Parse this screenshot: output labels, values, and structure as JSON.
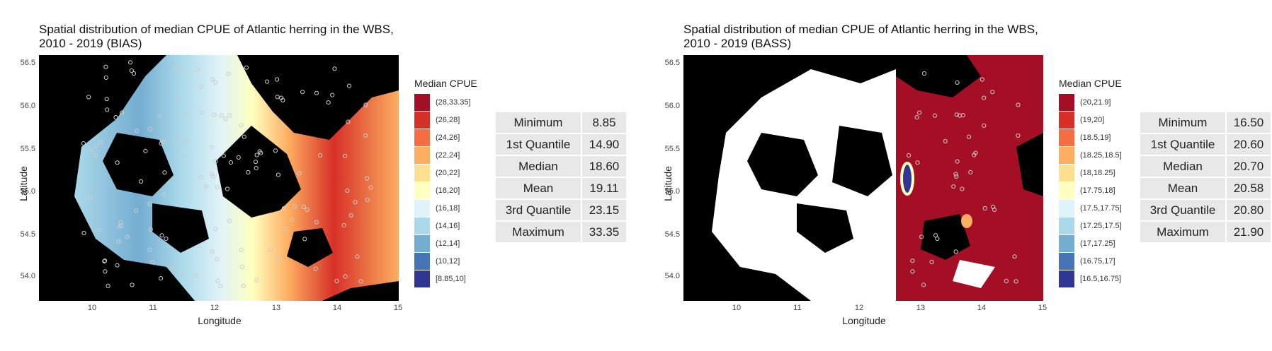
{
  "chart_data": [
    {
      "type": "heatmap",
      "title": "Spatial distribution of median CPUE of Atlantic herring in the WBS,",
      "subtitle": "2010 - 2019 (BIAS)",
      "xlabel": "Longitude",
      "ylabel": "Latitude",
      "xlim": [
        9.15,
        15.0
      ],
      "ylim": [
        53.7,
        56.6
      ],
      "x_ticks": [
        "10",
        "11",
        "12",
        "13",
        "14",
        "15"
      ],
      "y_ticks": [
        "56.5",
        "56.0",
        "55.5",
        "55.0",
        "54.5",
        "54.0"
      ],
      "legend_title": "Median CPUE",
      "legend": [
        {
          "label": "(28,33.35]",
          "color": "#a50f26"
        },
        {
          "label": "(26,28]",
          "color": "#d73027"
        },
        {
          "label": "(24,26]",
          "color": "#f46d43"
        },
        {
          "label": "(22,24]",
          "color": "#fdae61"
        },
        {
          "label": "(20,22]",
          "color": "#fee090"
        },
        {
          "label": "(18,20]",
          "color": "#ffffbf"
        },
        {
          "label": "(16,18]",
          "color": "#e0f3f8"
        },
        {
          "label": "(14,16]",
          "color": "#abd9e9"
        },
        {
          "label": "(12,14]",
          "color": "#74add1"
        },
        {
          "label": "(10,12]",
          "color": "#4575b4"
        },
        {
          "label": "[8.85,10]",
          "color": "#313695"
        }
      ],
      "stats": [
        {
          "name": "Minimum",
          "value": "8.85"
        },
        {
          "name": "1st Quantile",
          "value": "14.90"
        },
        {
          "name": "Median",
          "value": "18.60"
        },
        {
          "name": "Mean",
          "value": "19.11"
        },
        {
          "name": "3rd Quantile",
          "value": "23.15"
        },
        {
          "name": "Maximum",
          "value": "33.35"
        }
      ]
    },
    {
      "type": "heatmap",
      "title": "Spatial distribution of median CPUE of Atlantic herring in the WBS,",
      "subtitle": "2010 - 2019 (BASS)",
      "xlabel": "Longitude",
      "ylabel": "Latitude",
      "xlim": [
        9.15,
        15.0
      ],
      "ylim": [
        53.7,
        56.6
      ],
      "x_ticks": [
        "10",
        "11",
        "12",
        "13",
        "14",
        "15"
      ],
      "y_ticks": [
        "56.5",
        "56.0",
        "55.5",
        "55.0",
        "54.5",
        "54.0"
      ],
      "legend_title": "Median CPUE",
      "legend": [
        {
          "label": "(20,21.9]",
          "color": "#a50f26"
        },
        {
          "label": "(19,20]",
          "color": "#d73027"
        },
        {
          "label": "(18.5,19]",
          "color": "#f46d43"
        },
        {
          "label": "(18.25,18.5]",
          "color": "#fdae61"
        },
        {
          "label": "(18,18.25]",
          "color": "#fee090"
        },
        {
          "label": "(17.75,18]",
          "color": "#ffffbf"
        },
        {
          "label": "(17.5,17.75]",
          "color": "#e0f3f8"
        },
        {
          "label": "(17.25,17.5]",
          "color": "#abd9e9"
        },
        {
          "label": "(17,17.25]",
          "color": "#74add1"
        },
        {
          "label": "(16.75,17]",
          "color": "#4575b4"
        },
        {
          "label": "[16.5,16.75]",
          "color": "#313695"
        }
      ],
      "stats": [
        {
          "name": "Minimum",
          "value": "16.50"
        },
        {
          "name": "1st Quantile",
          "value": "20.60"
        },
        {
          "name": "Median",
          "value": "20.70"
        },
        {
          "name": "Mean",
          "value": "20.58"
        },
        {
          "name": "3rd Quantile",
          "value": "20.80"
        },
        {
          "name": "Maximum",
          "value": "21.90"
        }
      ]
    }
  ]
}
